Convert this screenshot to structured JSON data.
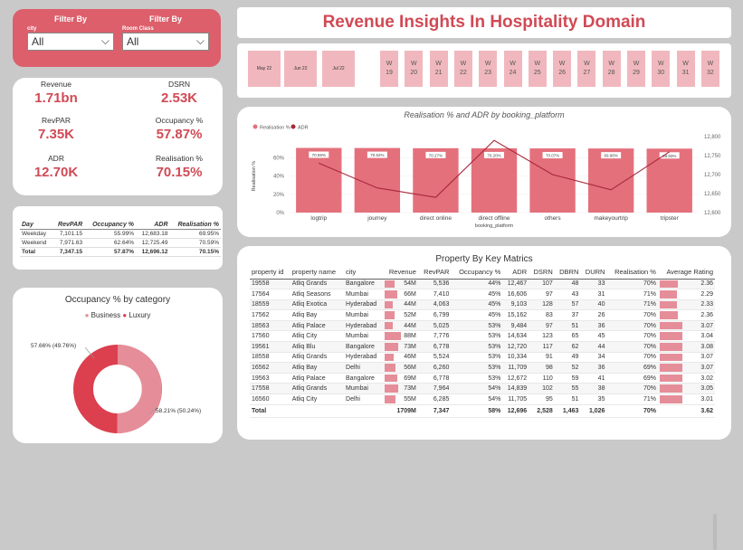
{
  "filters": {
    "city": {
      "title": "Filter By",
      "label": "city",
      "value": "All"
    },
    "room_class": {
      "title": "Filter By",
      "label": "Room Class",
      "value": "All"
    }
  },
  "title": "Revenue Insights In Hospitality Domain",
  "months": [
    "May 22",
    "Jun 22",
    "Jul 22"
  ],
  "weeks": [
    "19",
    "20",
    "21",
    "22",
    "23",
    "24",
    "25",
    "26",
    "27",
    "28",
    "29",
    "30",
    "31",
    "32"
  ],
  "week_prefix": "W",
  "kpis": {
    "revenue": {
      "label": "Revenue",
      "value": "1.71bn"
    },
    "dsrn": {
      "label": "DSRN",
      "value": "2.53K"
    },
    "revpar": {
      "label": "RevPAR",
      "value": "7.35K"
    },
    "occupancy": {
      "label": "Occupancy %",
      "value": "57.87%"
    },
    "adr": {
      "label": "ADR",
      "value": "12.70K"
    },
    "realisation": {
      "label": "Realisation %",
      "value": "70.15%"
    }
  },
  "day_table": {
    "headers": [
      "Day",
      "RevPAR",
      "Occupancy %",
      "ADR",
      "Realisation %"
    ],
    "rows": [
      [
        "Weekday",
        "7,101.15",
        "55.99%",
        "12,683.18",
        "69.95%"
      ],
      [
        "Weekend",
        "7,971.63",
        "62.64%",
        "12,725.49",
        "70.59%"
      ]
    ],
    "total": [
      "Total",
      "7,347.15",
      "57.87%",
      "12,696.12",
      "70.15%"
    ]
  },
  "donut": {
    "title": "Occupancy % by category",
    "legend": [
      "Business",
      "Luxury"
    ],
    "labels": {
      "left": "57.66% (49.76%)",
      "right": "58.21% (50.24%)"
    }
  },
  "colors": {
    "accent": "#d04a55",
    "business": "#e58e99",
    "luxury": "#dc3f4e",
    "bar": "#e4707c",
    "line": "#a8273a"
  },
  "chart_data": {
    "type": "bar",
    "title": "Realisation % and ADR by booking_platform",
    "legend": [
      "Realisation %",
      "ADR"
    ],
    "categories": [
      "logtrip",
      "journey",
      "direct online",
      "direct offline",
      "others",
      "makeyourtrip",
      "tripster"
    ],
    "series": [
      {
        "name": "Realisation %",
        "type": "bar",
        "axis": "left",
        "values": [
          70.59,
          70.52,
          70.27,
          70.2,
          70.07,
          69.98,
          69.83
        ]
      },
      {
        "name": "ADR",
        "type": "line",
        "axis": "right",
        "values": [
          12730,
          12665,
          12640,
          12790,
          12700,
          12660,
          12760
        ]
      }
    ],
    "data_labels": [
      "70.59%",
      "70.52%",
      "70.27%",
      "70.20%",
      "70.07%",
      "69.98%",
      "69.83%"
    ],
    "xlabel": "booking_platform",
    "ylabel": "Realisation %",
    "ylim": [
      0,
      80
    ],
    "yticks": [
      "0%",
      "20%",
      "40%",
      "60%"
    ],
    "y2lim": [
      12600,
      12800
    ],
    "y2ticks": [
      "12,800",
      "12,750",
      "12,700",
      "12,650",
      "12,600"
    ]
  },
  "property_table": {
    "title": "Property By Key Matrics",
    "headers": [
      "property id",
      "property name",
      "city",
      "Revenue",
      "RevPAR",
      "Occupancy %",
      "ADR",
      "DSRN",
      "DBRN",
      "DURN",
      "Realisation %",
      "Average Rating"
    ],
    "rows": [
      [
        "19558",
        "Atliq Grands",
        "Bangalore",
        "54M",
        "5,536",
        "44%",
        "12,467",
        "107",
        "48",
        "33",
        "70%",
        "2.36"
      ],
      [
        "17564",
        "Atliq Seasons",
        "Mumbai",
        "66M",
        "7,410",
        "45%",
        "16,606",
        "97",
        "43",
        "31",
        "71%",
        "2.29"
      ],
      [
        "18559",
        "Atliq Exotica",
        "Hyderabad",
        "44M",
        "4,063",
        "45%",
        "9,103",
        "128",
        "57",
        "40",
        "71%",
        "2.33"
      ],
      [
        "17562",
        "Atliq Bay",
        "Mumbai",
        "52M",
        "6,799",
        "45%",
        "15,162",
        "83",
        "37",
        "26",
        "70%",
        "2.36"
      ],
      [
        "18563",
        "Atliq Palace",
        "Hyderabad",
        "44M",
        "5,025",
        "53%",
        "9,484",
        "97",
        "51",
        "36",
        "70%",
        "3.07"
      ],
      [
        "17560",
        "Atliq City",
        "Mumbai",
        "88M",
        "7,776",
        "53%",
        "14,634",
        "123",
        "65",
        "45",
        "70%",
        "3.04"
      ],
      [
        "19561",
        "Atliq Blu",
        "Bangalore",
        "73M",
        "6,778",
        "53%",
        "12,720",
        "117",
        "62",
        "44",
        "70%",
        "3.08"
      ],
      [
        "18558",
        "Atliq Grands",
        "Hyderabad",
        "46M",
        "5,524",
        "53%",
        "10,334",
        "91",
        "49",
        "34",
        "70%",
        "3.07"
      ],
      [
        "16562",
        "Atliq Bay",
        "Delhi",
        "56M",
        "6,260",
        "53%",
        "11,709",
        "98",
        "52",
        "36",
        "69%",
        "3.07"
      ],
      [
        "19563",
        "Atliq Palace",
        "Bangalore",
        "69M",
        "6,778",
        "53%",
        "12,672",
        "110",
        "59",
        "41",
        "69%",
        "3.02"
      ],
      [
        "17558",
        "Atliq Grands",
        "Mumbai",
        "73M",
        "7,964",
        "54%",
        "14,839",
        "102",
        "55",
        "38",
        "70%",
        "3.05"
      ],
      [
        "16560",
        "Atliq City",
        "Delhi",
        "55M",
        "6,285",
        "54%",
        "11,705",
        "95",
        "51",
        "35",
        "71%",
        "3.01"
      ]
    ],
    "total": [
      "Total",
      "",
      "",
      "1709M",
      "7,347",
      "58%",
      "12,696",
      "2,528",
      "1,463",
      "1,026",
      "70%",
      "3.62"
    ],
    "revenue_values": [
      54,
      66,
      44,
      52,
      44,
      88,
      73,
      46,
      56,
      69,
      73,
      55
    ],
    "rating_values": [
      2.36,
      2.29,
      2.33,
      2.36,
      3.07,
      3.04,
      3.08,
      3.07,
      3.07,
      3.02,
      3.05,
      3.01
    ]
  }
}
